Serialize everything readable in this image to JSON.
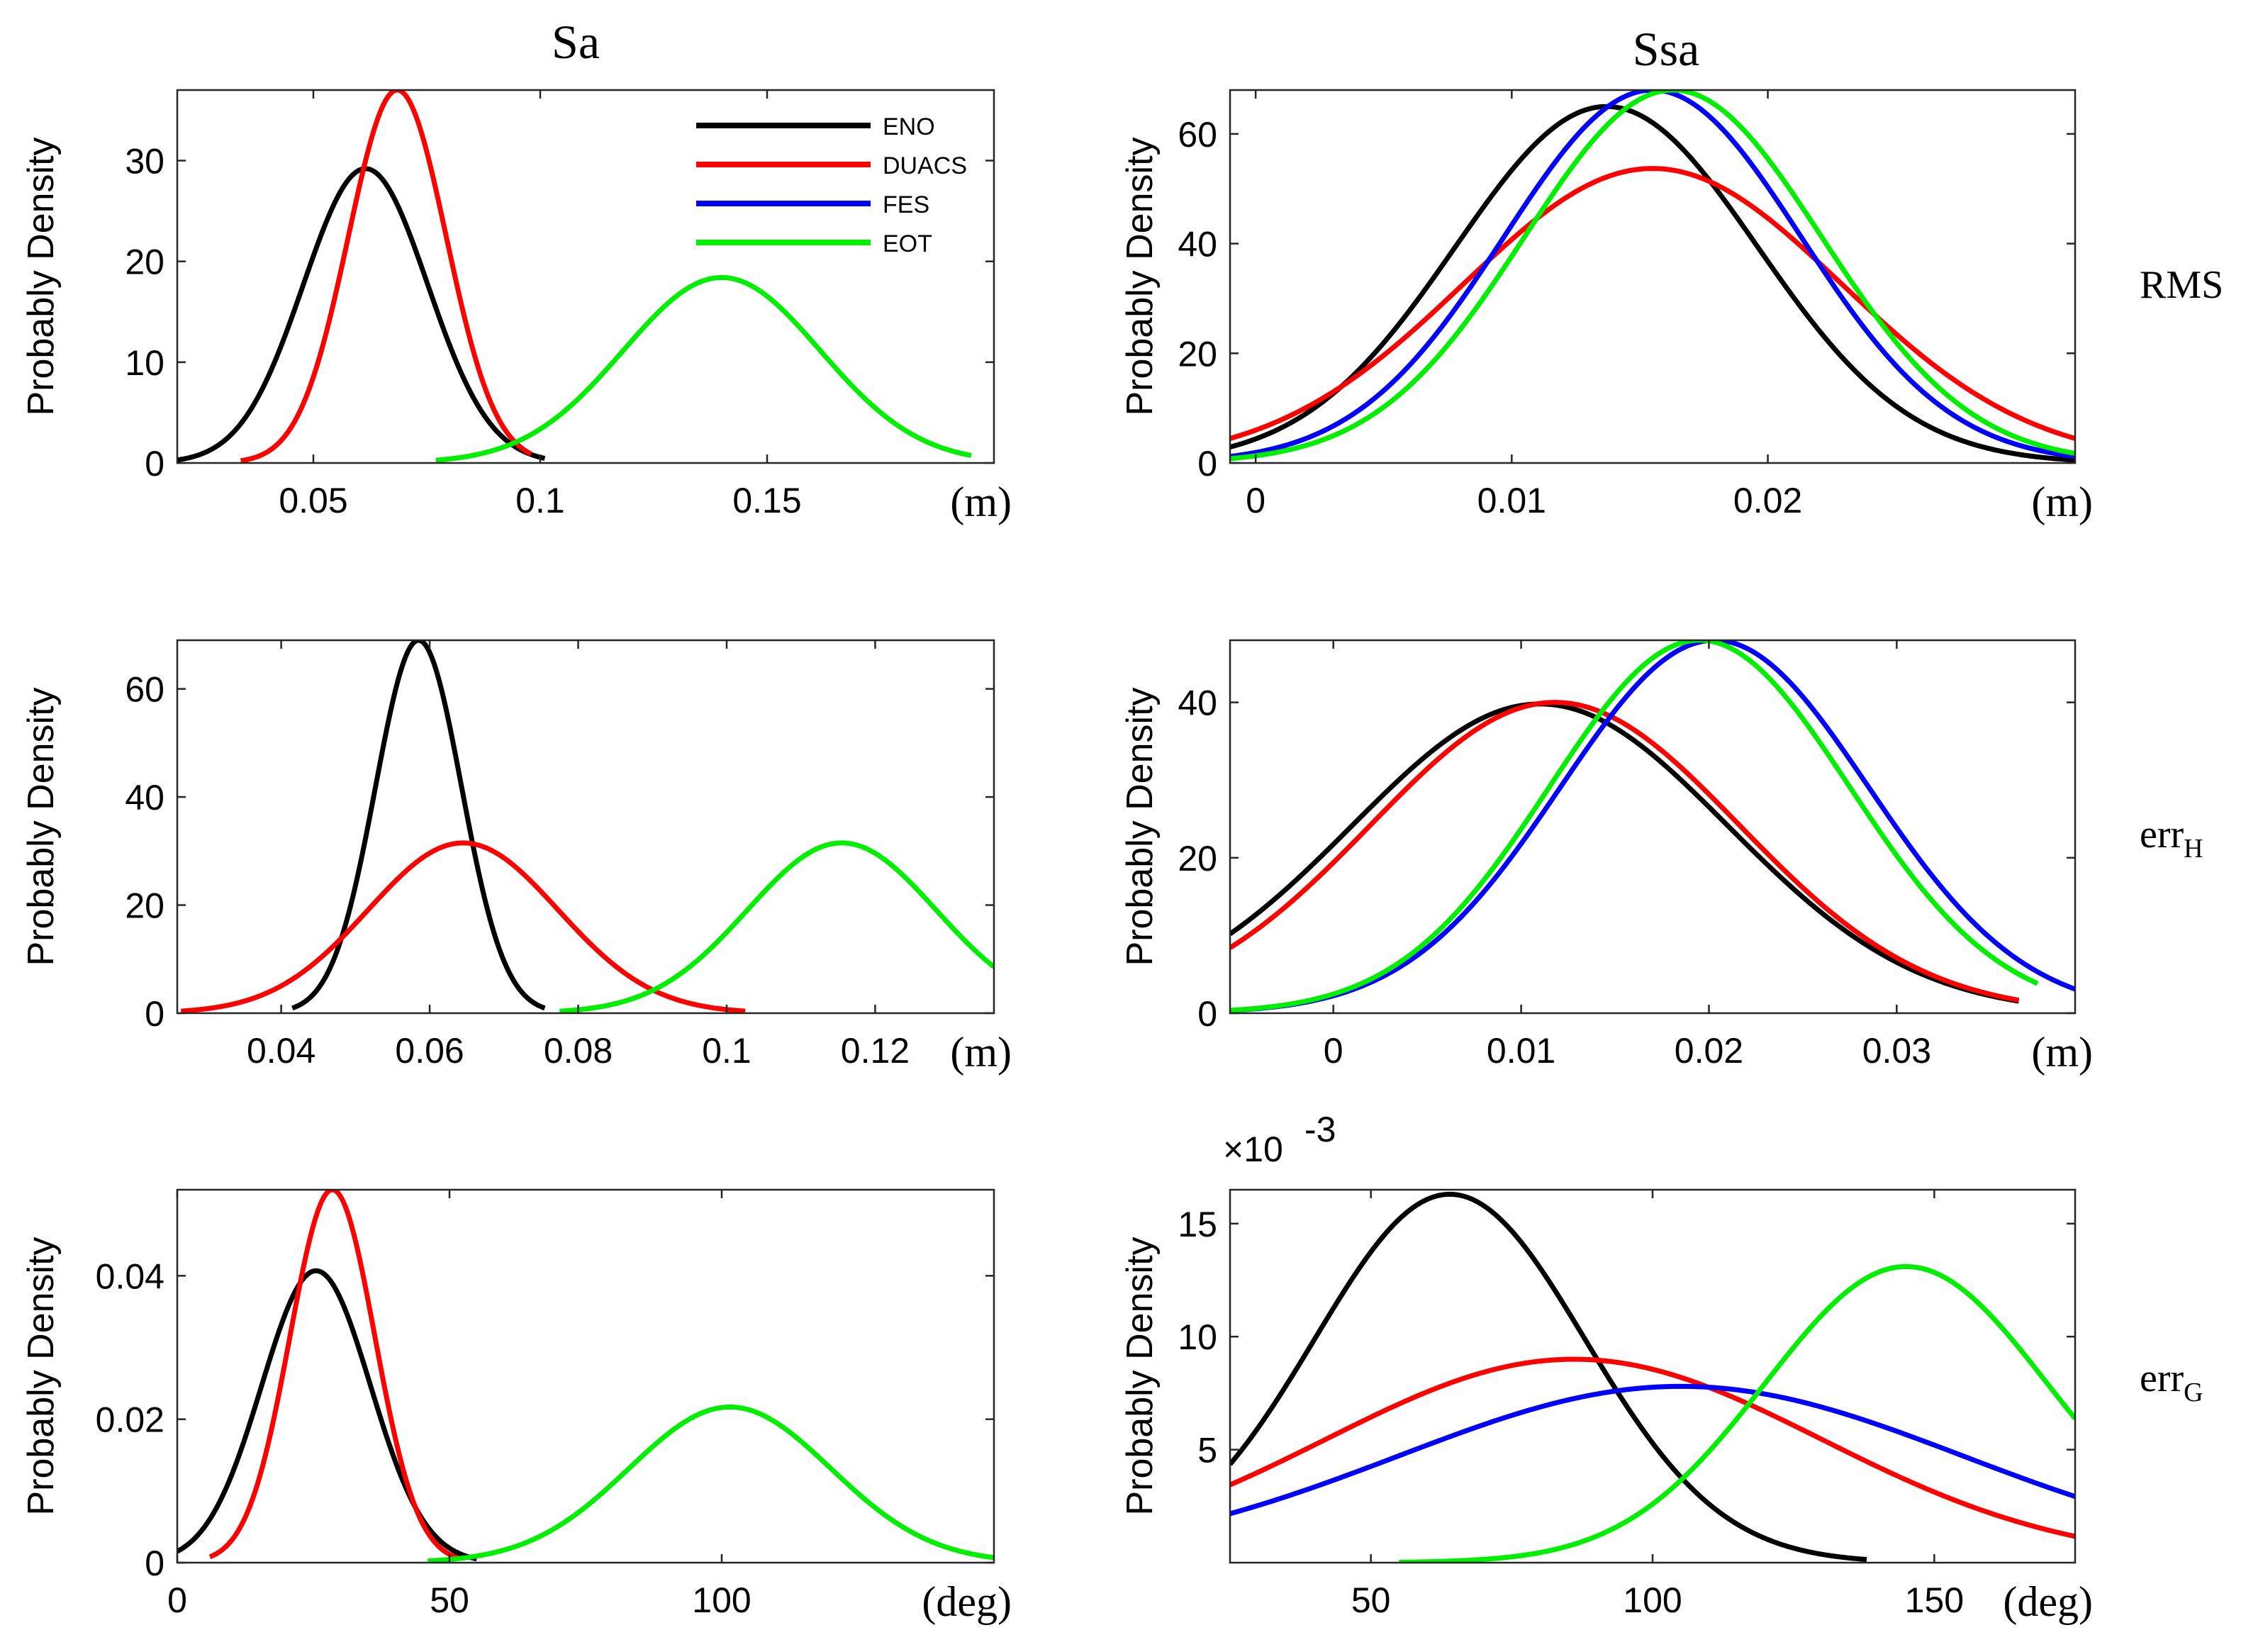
{
  "figure": {
    "column_titles": [
      "Sa",
      "Ssa"
    ],
    "row_labels": [
      {
        "base": "RMS",
        "sub": ""
      },
      {
        "base": "err",
        "sub": "H"
      },
      {
        "base": "err",
        "sub": "G"
      }
    ]
  },
  "legend": [
    {
      "name": "ENO",
      "color": "#000000"
    },
    {
      "name": "DUACS",
      "color": "#ff0000"
    },
    {
      "name": "FES",
      "color": "#0000ff"
    },
    {
      "name": "EOT",
      "color": "#00ee00"
    }
  ],
  "chart_data": [
    {
      "id": "sa-rms",
      "type": "line",
      "ylabel": "Probably Density",
      "unit": "(m)",
      "xlim": [
        0.02,
        0.2
      ],
      "ylim": [
        0,
        37
      ],
      "xticks": [
        0.05,
        0.1,
        0.15
      ],
      "xtick_labels": [
        "0.05",
        "0.1",
        "0.15"
      ],
      "yticks": [
        0,
        10,
        20,
        30
      ],
      "ytick_labels": [
        "0",
        "10",
        "20",
        "30"
      ],
      "series": [
        {
          "name": "ENO",
          "color": "#000000",
          "mu": 0.0615,
          "sigma": 0.0137,
          "peak": 29.2,
          "range": [
            0.02,
            0.101
          ]
        },
        {
          "name": "DUACS",
          "color": "#ff0000",
          "mu": 0.0685,
          "sigma": 0.0108,
          "peak": 37,
          "range": [
            0.034,
            0.098
          ]
        },
        {
          "name": "EOT",
          "color": "#00ee00",
          "mu": 0.14,
          "sigma": 0.0217,
          "peak": 18.4,
          "range": [
            0.077,
            0.195
          ]
        }
      ]
    },
    {
      "id": "ssa-rms",
      "type": "line",
      "ylabel": "Probably Density",
      "unit": "(m)",
      "xlim": [
        -0.001,
        0.032
      ],
      "ylim": [
        0,
        68
      ],
      "xticks": [
        0,
        0.01,
        0.02
      ],
      "xtick_labels": [
        "0",
        "0.01",
        "0.02"
      ],
      "yticks": [
        0,
        20,
        40,
        60
      ],
      "ytick_labels": [
        "0",
        "20",
        "40",
        "60"
      ],
      "series": [
        {
          "name": "ENO",
          "color": "#000000",
          "mu": 0.0137,
          "sigma": 0.0059,
          "peak": 65,
          "range": [
            -0.001,
            0.032
          ]
        },
        {
          "name": "DUACS",
          "color": "#ff0000",
          "mu": 0.0155,
          "sigma": 0.0074,
          "peak": 53.7,
          "range": [
            -0.001,
            0.032
          ]
        },
        {
          "name": "FES",
          "color": "#0000ff",
          "mu": 0.0155,
          "sigma": 0.0058,
          "peak": 68,
          "range": [
            -0.001,
            0.032
          ]
        },
        {
          "name": "EOT",
          "color": "#00ee00",
          "mu": 0.0163,
          "sigma": 0.0058,
          "peak": 68,
          "range": [
            -0.001,
            0.032
          ]
        }
      ]
    },
    {
      "id": "sa-errH",
      "type": "line",
      "ylabel": "Probably Density",
      "unit": "(m)",
      "xlim": [
        0.026,
        0.136
      ],
      "ylim": [
        0,
        69
      ],
      "xticks": [
        0.04,
        0.06,
        0.08,
        0.1,
        0.12
      ],
      "xtick_labels": [
        "0.04",
        "0.06",
        "0.08",
        "0.1",
        "0.12"
      ],
      "yticks": [
        0,
        20,
        40,
        60
      ],
      "ytick_labels": [
        "0",
        "20",
        "40",
        "60"
      ],
      "series": [
        {
          "name": "ENO",
          "color": "#000000",
          "mu": 0.0585,
          "sigma": 0.0058,
          "peak": 69,
          "range": [
            0.0415,
            0.0755
          ]
        },
        {
          "name": "DUACS",
          "color": "#ff0000",
          "mu": 0.0645,
          "sigma": 0.0128,
          "peak": 31.5,
          "range": [
            0.0265,
            0.1025
          ]
        },
        {
          "name": "EOT",
          "color": "#00ee00",
          "mu": 0.1155,
          "sigma": 0.0127,
          "peak": 31.5,
          "range": [
            0.0775,
            0.136
          ]
        }
      ]
    },
    {
      "id": "ssa-errH",
      "type": "line",
      "ylabel": "Probably Density",
      "unit": "(m)",
      "xlim": [
        -0.0055,
        0.0395
      ],
      "ylim": [
        0,
        48
      ],
      "xticks": [
        0,
        0.01,
        0.02,
        0.03
      ],
      "xtick_labels": [
        "0",
        "0.01",
        "0.02",
        "0.03"
      ],
      "yticks": [
        0,
        20,
        40
      ],
      "ytick_labels": [
        "0",
        "20",
        "40"
      ],
      "series": [
        {
          "name": "ENO",
          "color": "#000000",
          "mu": 0.011,
          "sigma": 0.01,
          "peak": 39.8,
          "range": [
            -0.0055,
            0.0365
          ]
        },
        {
          "name": "DUACS",
          "color": "#ff0000",
          "mu": 0.0118,
          "sigma": 0.0098,
          "peak": 40,
          "range": [
            -0.0055,
            0.0365
          ]
        },
        {
          "name": "FES",
          "color": "#0000ff",
          "mu": 0.0203,
          "sigma": 0.0082,
          "peak": 48,
          "range": [
            -0.0055,
            0.0395
          ]
        },
        {
          "name": "EOT",
          "color": "#00ee00",
          "mu": 0.0195,
          "sigma": 0.008,
          "peak": 48,
          "range": [
            -0.0055,
            0.0375
          ]
        }
      ]
    },
    {
      "id": "sa-errG",
      "type": "line",
      "ylabel": "Probably Density",
      "unit": "(deg)",
      "xlim": [
        0,
        150
      ],
      "ylim": [
        0,
        0.052
      ],
      "xticks": [
        0,
        50,
        100
      ],
      "xtick_labels": [
        "0",
        "50",
        "100"
      ],
      "yticks": [
        0,
        0.02,
        0.04
      ],
      "ytick_labels": [
        "0",
        "0.02",
        "0.04"
      ],
      "series": [
        {
          "name": "ENO",
          "color": "#000000",
          "mu": 25.5,
          "sigma": 10,
          "peak": 0.0407,
          "range": [
            0,
            55
          ]
        },
        {
          "name": "DUACS",
          "color": "#ff0000",
          "mu": 28.5,
          "sigma": 7.8,
          "peak": 0.052,
          "range": [
            6,
            52
          ]
        },
        {
          "name": "EOT",
          "color": "#00ee00",
          "mu": 101.5,
          "sigma": 18.5,
          "peak": 0.0217,
          "range": [
            46,
            150
          ]
        }
      ]
    },
    {
      "id": "ssa-errG",
      "type": "line",
      "ylabel": "Probably Density",
      "unit": "(deg)",
      "exponent_label": "×10",
      "exponent": "-3",
      "xlim": [
        25,
        175
      ],
      "ylim": [
        0,
        16.5
      ],
      "xticks": [
        50,
        100,
        150
      ],
      "xtick_labels": [
        "50",
        "100",
        "150"
      ],
      "yticks": [
        5,
        10,
        15
      ],
      "ytick_labels": [
        "5",
        "10",
        "15"
      ],
      "series": [
        {
          "name": "ENO",
          "color": "#000000",
          "mu": 64,
          "sigma": 24,
          "peak": 16.3,
          "range": [
            25,
            138
          ]
        },
        {
          "name": "DUACS",
          "color": "#ff0000",
          "mu": 86,
          "sigma": 44,
          "peak": 9.0,
          "range": [
            25,
            175
          ]
        },
        {
          "name": "FES",
          "color": "#0000ff",
          "mu": 105,
          "sigma": 50,
          "peak": 7.8,
          "range": [
            25,
            175
          ]
        },
        {
          "name": "EOT",
          "color": "#00ee00",
          "mu": 145,
          "sigma": 25,
          "peak": 13.1,
          "range": [
            55,
            175
          ]
        }
      ]
    }
  ]
}
